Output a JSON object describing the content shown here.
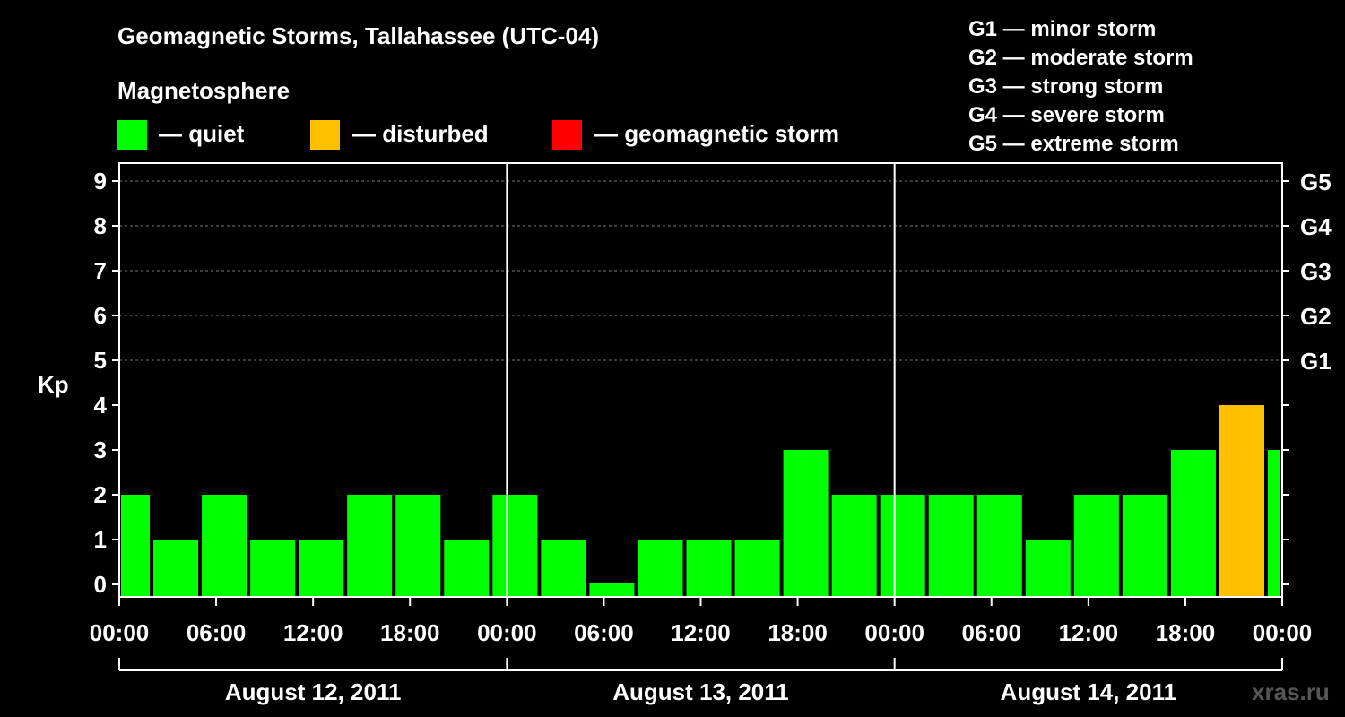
{
  "header": {
    "title": "Geomagnetic Storms, Tallahassee (UTC-04)",
    "subtitle": "Magnetosphere"
  },
  "legend": [
    {
      "label": "— quiet",
      "color": "#00ff00"
    },
    {
      "label": "— disturbed",
      "color": "#ffc000"
    },
    {
      "label": "— geomagnetic storm",
      "color": "#ff0000"
    }
  ],
  "storm_scale": [
    "G1 — minor storm",
    "G2 — moderate storm",
    "G3 — strong storm",
    "G4 — severe storm",
    "G5 — extreme storm"
  ],
  "watermark": "xras.ru",
  "chart_data": {
    "type": "bar",
    "title": "Geomagnetic Storms, Tallahassee (UTC-04)",
    "ylabel": "Kp",
    "ylim": [
      0,
      9
    ],
    "y_ticks": [
      "0",
      "1",
      "2",
      "3",
      "4",
      "5",
      "6",
      "7",
      "8",
      "9"
    ],
    "right_axis_labels": [
      {
        "kp": 5,
        "label": "G1"
      },
      {
        "kp": 6,
        "label": "G2"
      },
      {
        "kp": 7,
        "label": "G3"
      },
      {
        "kp": 8,
        "label": "G4"
      },
      {
        "kp": 9,
        "label": "G5"
      }
    ],
    "x_tick_labels": [
      "00:00",
      "06:00",
      "12:00",
      "18:00",
      "00:00",
      "06:00",
      "12:00",
      "18:00",
      "00:00",
      "06:00",
      "12:00",
      "18:00",
      "00:00"
    ],
    "day_labels": [
      "August 12, 2011",
      "August 13, 2011",
      "August 14, 2011"
    ],
    "grid": "horizontal dashed at Kp 5-9",
    "hours_total": 72,
    "bars": [
      {
        "start_hour": 0,
        "end_hour": 2,
        "kp": 2,
        "color": "#00ff00"
      },
      {
        "start_hour": 2,
        "end_hour": 5,
        "kp": 1,
        "color": "#00ff00"
      },
      {
        "start_hour": 5,
        "end_hour": 8,
        "kp": 2,
        "color": "#00ff00"
      },
      {
        "start_hour": 8,
        "end_hour": 11,
        "kp": 1,
        "color": "#00ff00"
      },
      {
        "start_hour": 11,
        "end_hour": 14,
        "kp": 1,
        "color": "#00ff00"
      },
      {
        "start_hour": 14,
        "end_hour": 17,
        "kp": 2,
        "color": "#00ff00"
      },
      {
        "start_hour": 17,
        "end_hour": 20,
        "kp": 2,
        "color": "#00ff00"
      },
      {
        "start_hour": 20,
        "end_hour": 23,
        "kp": 1,
        "color": "#00ff00"
      },
      {
        "start_hour": 23,
        "end_hour": 26,
        "kp": 2,
        "color": "#00ff00"
      },
      {
        "start_hour": 26,
        "end_hour": 29,
        "kp": 1,
        "color": "#00ff00"
      },
      {
        "start_hour": 29,
        "end_hour": 32,
        "kp": 0,
        "color": "#00ff00"
      },
      {
        "start_hour": 32,
        "end_hour": 35,
        "kp": 1,
        "color": "#00ff00"
      },
      {
        "start_hour": 35,
        "end_hour": 38,
        "kp": 1,
        "color": "#00ff00"
      },
      {
        "start_hour": 38,
        "end_hour": 41,
        "kp": 1,
        "color": "#00ff00"
      },
      {
        "start_hour": 41,
        "end_hour": 44,
        "kp": 3,
        "color": "#00ff00"
      },
      {
        "start_hour": 44,
        "end_hour": 47,
        "kp": 2,
        "color": "#00ff00"
      },
      {
        "start_hour": 47,
        "end_hour": 50,
        "kp": 2,
        "color": "#00ff00"
      },
      {
        "start_hour": 50,
        "end_hour": 53,
        "kp": 2,
        "color": "#00ff00"
      },
      {
        "start_hour": 53,
        "end_hour": 56,
        "kp": 2,
        "color": "#00ff00"
      },
      {
        "start_hour": 56,
        "end_hour": 59,
        "kp": 1,
        "color": "#00ff00"
      },
      {
        "start_hour": 59,
        "end_hour": 62,
        "kp": 2,
        "color": "#00ff00"
      },
      {
        "start_hour": 62,
        "end_hour": 65,
        "kp": 2,
        "color": "#00ff00"
      },
      {
        "start_hour": 65,
        "end_hour": 68,
        "kp": 3,
        "color": "#00ff00"
      },
      {
        "start_hour": 68,
        "end_hour": 71,
        "kp": 4,
        "color": "#ffc000"
      },
      {
        "start_hour": 71,
        "end_hour": 72,
        "kp": 3,
        "color": "#00ff00"
      }
    ]
  }
}
